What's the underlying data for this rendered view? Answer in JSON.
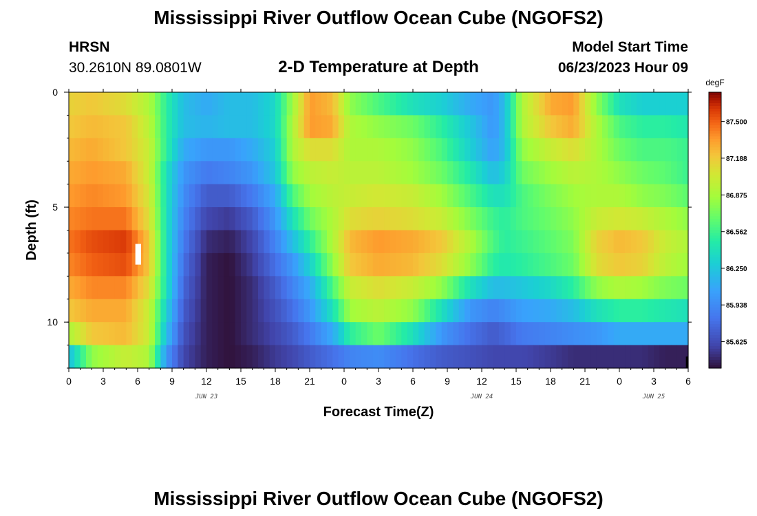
{
  "header": {
    "title": "Mississippi River Outflow Ocean Cube (NGOFS2)",
    "station": "HRSN",
    "coords": "30.2610N  89.0801W",
    "plot_title": "2-D Temperature at Depth",
    "model_start_label": "Model Start Time",
    "model_start_value": "06/23/2023 Hour 09"
  },
  "footer": {
    "title": "Mississippi River Outflow Ocean Cube (NGOFS2)"
  },
  "chart_data": {
    "type": "heatmap",
    "title": "2-D Temperature at Depth",
    "xlabel": "Forecast Time(Z)",
    "ylabel": "Depth (ft)",
    "x_range_hours": [
      0,
      54
    ],
    "y_range_ft": [
      0,
      12
    ],
    "y_inverted": true,
    "x_tick_labels": [
      "0",
      "3",
      "6",
      "9",
      "12",
      "15",
      "18",
      "21",
      "0",
      "3",
      "6",
      "9",
      "12",
      "15",
      "18",
      "21",
      "0",
      "3",
      "6"
    ],
    "y_tick_labels": [
      "0",
      "5",
      "10"
    ],
    "y_tick_values": [
      0,
      5,
      10
    ],
    "date_labels": [
      {
        "text": "JUN 23",
        "hour": 12
      },
      {
        "text": "JUN 24",
        "hour": 36
      },
      {
        "text": "JUN 25",
        "hour": 51
      }
    ],
    "colorbar": {
      "unit": "degF",
      "range": [
        85.4,
        87.75
      ],
      "tick_labels": [
        "87.500",
        "87.188",
        "86.875",
        "86.562",
        "86.250",
        "85.938",
        "85.625"
      ],
      "tick_values": [
        87.5,
        87.188,
        86.875,
        86.562,
        86.25,
        85.938,
        85.625
      ]
    },
    "depth_levels_ft": [
      0.5,
      1.5,
      2.5,
      3.5,
      4.5,
      5.5,
      6.5,
      7.5,
      8.5,
      9.5,
      10.5,
      11.5
    ],
    "control_hours": [
      0,
      2,
      5,
      7,
      8.5,
      10,
      12,
      14,
      16,
      18,
      19.5,
      21,
      23,
      24.5,
      27,
      30,
      32.5,
      35,
      37,
      38,
      39.5,
      42,
      44,
      46,
      48,
      50,
      52,
      54
    ],
    "temperature_degF": [
      [
        87.15,
        87.2,
        87.1,
        86.9,
        86.5,
        86.2,
        86.1,
        86.2,
        86.2,
        86.35,
        86.85,
        87.35,
        87.25,
        86.8,
        86.6,
        86.4,
        86.3,
        86.1,
        86.0,
        86.2,
        86.9,
        87.3,
        87.35,
        86.8,
        86.4,
        86.3,
        86.3,
        86.3
      ],
      [
        87.2,
        87.25,
        87.2,
        86.95,
        86.5,
        86.2,
        86.15,
        86.2,
        86.2,
        86.35,
        86.9,
        87.35,
        87.3,
        86.9,
        86.8,
        86.7,
        86.5,
        86.25,
        86.0,
        86.2,
        86.9,
        87.2,
        87.3,
        86.9,
        86.6,
        86.5,
        86.5,
        86.45
      ],
      [
        87.25,
        87.3,
        87.2,
        87.0,
        86.5,
        86.1,
        86.0,
        86.0,
        86.1,
        86.3,
        86.9,
        87.1,
        87.1,
        86.9,
        86.9,
        86.8,
        86.6,
        86.3,
        86.05,
        86.2,
        86.8,
        87.0,
        87.1,
        86.9,
        86.7,
        86.6,
        86.6,
        86.55
      ],
      [
        87.3,
        87.35,
        87.3,
        87.0,
        86.4,
        86.0,
        85.85,
        85.9,
        86.0,
        86.25,
        86.8,
        86.95,
        87.0,
        86.95,
        86.95,
        86.85,
        86.7,
        86.45,
        86.2,
        86.3,
        86.7,
        86.85,
        86.95,
        86.9,
        86.8,
        86.7,
        86.65,
        86.55
      ],
      [
        87.35,
        87.4,
        87.35,
        87.05,
        86.4,
        85.95,
        85.7,
        85.7,
        85.85,
        86.1,
        86.6,
        86.85,
        86.95,
        87.0,
        87.05,
        87.0,
        86.85,
        86.6,
        86.4,
        86.4,
        86.6,
        86.75,
        86.85,
        86.9,
        86.9,
        86.8,
        86.75,
        86.65
      ],
      [
        87.4,
        87.45,
        87.45,
        87.1,
        86.4,
        85.9,
        85.6,
        85.55,
        85.7,
        86.0,
        86.4,
        86.7,
        86.9,
        87.1,
        87.15,
        87.1,
        87.0,
        86.75,
        86.55,
        86.5,
        86.6,
        86.7,
        86.8,
        87.0,
        87.05,
        87.0,
        86.9,
        86.8
      ],
      [
        87.45,
        87.55,
        87.6,
        87.2,
        86.4,
        85.85,
        85.5,
        85.45,
        85.6,
        85.9,
        86.2,
        86.5,
        86.9,
        87.25,
        87.35,
        87.3,
        87.2,
        86.9,
        86.6,
        86.5,
        86.55,
        86.65,
        86.75,
        87.15,
        87.25,
        87.2,
        87.0,
        86.9
      ],
      [
        87.4,
        87.5,
        87.55,
        87.2,
        86.4,
        85.8,
        85.45,
        85.4,
        85.55,
        85.8,
        86.0,
        86.3,
        86.8,
        87.2,
        87.3,
        87.25,
        87.1,
        86.8,
        86.5,
        86.45,
        86.5,
        86.6,
        86.7,
        87.1,
        87.2,
        87.15,
        86.95,
        86.85
      ],
      [
        87.3,
        87.4,
        87.4,
        87.1,
        86.4,
        85.75,
        85.45,
        85.4,
        85.5,
        85.7,
        85.9,
        86.1,
        86.6,
        87.0,
        87.1,
        87.0,
        86.8,
        86.4,
        86.2,
        86.2,
        86.25,
        86.35,
        86.5,
        86.8,
        86.9,
        86.85,
        86.75,
        86.7
      ],
      [
        87.2,
        87.3,
        87.3,
        87.0,
        86.3,
        85.7,
        85.45,
        85.4,
        85.5,
        85.65,
        85.8,
        86.0,
        86.4,
        86.85,
        86.95,
        86.8,
        86.4,
        86.0,
        85.9,
        85.95,
        86.05,
        86.1,
        86.2,
        86.4,
        86.5,
        86.5,
        86.45,
        86.4
      ],
      [
        86.9,
        87.2,
        87.25,
        87.0,
        86.2,
        85.65,
        85.45,
        85.4,
        85.5,
        85.6,
        85.7,
        85.85,
        86.1,
        86.5,
        86.7,
        86.4,
        86.0,
        85.8,
        85.7,
        85.75,
        85.85,
        85.9,
        85.95,
        86.0,
        86.1,
        86.1,
        86.1,
        86.1
      ],
      [
        86.2,
        86.8,
        87.0,
        86.9,
        86.0,
        85.6,
        85.45,
        85.4,
        85.45,
        85.55,
        85.6,
        85.7,
        85.8,
        85.9,
        85.95,
        85.8,
        85.7,
        85.65,
        85.6,
        85.6,
        85.6,
        85.55,
        85.5,
        85.5,
        85.5,
        85.5,
        85.45,
        85.45
      ]
    ],
    "markers": [
      {
        "color": "#ffffff",
        "x_hours": [
          5.8,
          6.3
        ],
        "y_ft": [
          6.6,
          7.5
        ]
      },
      {
        "color": "#000000",
        "x_hours": [
          53.8,
          54
        ],
        "y_ft": [
          11.5,
          12
        ]
      }
    ]
  }
}
